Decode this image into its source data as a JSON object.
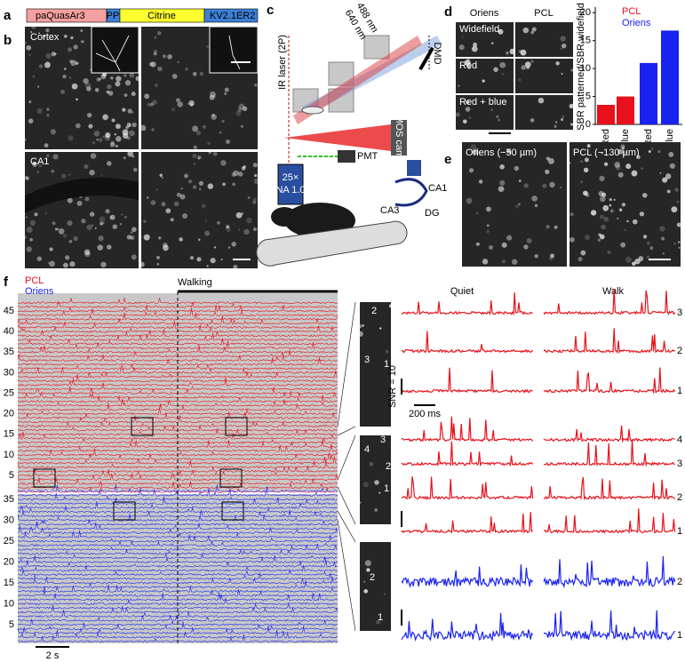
{
  "panel_labels": [
    "a",
    "b",
    "c",
    "d",
    "e",
    "f"
  ],
  "construct": [
    "paQuasAr3",
    "PP",
    "Citrine",
    "KV2.1",
    "ER2"
  ],
  "histology": {
    "top": "Cortex",
    "bottom": "CA1"
  },
  "setup": {
    "laser": "IR laser (2P)",
    "wave1": "488 nm",
    "wave2": "640 nm",
    "dmd": "DMD",
    "camera": "sCMOS camera",
    "pmt": "PMT",
    "objective": "25×",
    "na": "NA 1.0",
    "ca1": "CA1",
    "ca3": "CA3",
    "dg": "DG"
  },
  "sbr_images": {
    "columns": [
      "Oriens",
      "PCL"
    ],
    "rows": [
      "Widefield",
      "Red",
      "Red + blue"
    ]
  },
  "chart": {
    "type": "bar",
    "ylabel": "SBR patterned/SBR widefield",
    "categories": [
      "Red",
      "Red + blue",
      "Red",
      "Red + blue"
    ],
    "values": [
      3.5,
      5,
      11,
      16.8
    ],
    "colors": [
      "#e8101a",
      "#e8101a",
      "#1a22f0",
      "#1a22f0"
    ],
    "legend": [
      {
        "name": "PCL",
        "color": "#e8101a"
      },
      {
        "name": "Oriens",
        "color": "#1a22f0"
      }
    ],
    "ylim": [
      0,
      21
    ],
    "yticks": [
      0,
      5,
      10,
      15,
      20
    ]
  },
  "depth_images": [
    "Oriens (−50 µm)",
    "PCL (−130 µm)"
  ],
  "traces": {
    "pcl": "PCL",
    "oriens": "Oriens",
    "walking": "Walking",
    "pcl_ticks": [
      45,
      40,
      35,
      30,
      25,
      20,
      15,
      10,
      5
    ],
    "oriens_ticks": [
      35,
      30,
      25,
      20,
      15,
      10,
      5
    ],
    "time_bar": "2 s",
    "quiet": "Quiet",
    "walk": "Walk",
    "snr_bar": "SNR = 10",
    "ms_bar": "200 ms",
    "groups": [
      {
        "cells": [
          3,
          2,
          1
        ],
        "image_labels": [
          2,
          3,
          1
        ]
      },
      {
        "cells": [
          4,
          3,
          2,
          1
        ],
        "image_labels": [
          3,
          4,
          2,
          1
        ]
      },
      {
        "cells": [
          2,
          1
        ],
        "image_labels": [
          2,
          1
        ]
      }
    ]
  }
}
